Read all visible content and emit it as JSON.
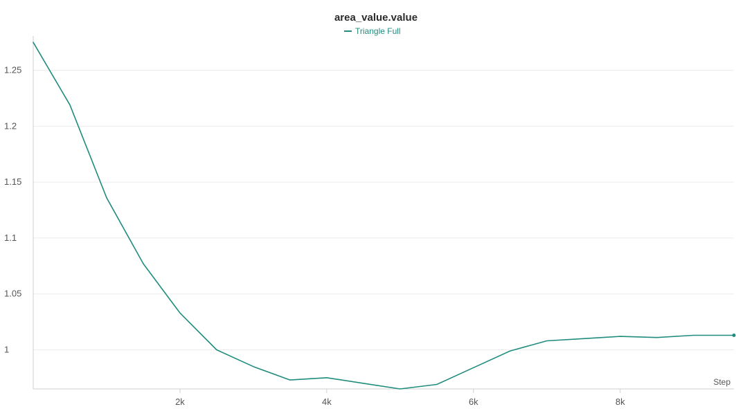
{
  "chart_data": {
    "type": "line",
    "title": "area_value.value",
    "xlabel": "Step",
    "ylabel": "",
    "xlim": [
      0,
      9550
    ],
    "ylim": [
      0.965,
      1.277
    ],
    "x_ticks": [
      2000,
      4000,
      6000,
      8000
    ],
    "x_tick_labels": [
      "2k",
      "4k",
      "6k",
      "8k"
    ],
    "y_ticks": [
      1,
      1.05,
      1.1,
      1.15,
      1.2,
      1.25
    ],
    "y_tick_labels": [
      "1",
      "1.05",
      "1.1",
      "1.15",
      "1.2",
      "1.25"
    ],
    "grid": true,
    "legend": "top-center",
    "series": [
      {
        "name": "Triangle Full",
        "color": "#1f8c7d",
        "x": [
          0,
          500,
          1000,
          1500,
          2000,
          2500,
          3000,
          3500,
          4000,
          4500,
          5000,
          5500,
          6000,
          6500,
          7000,
          7500,
          8000,
          8500,
          9000,
          9550
        ],
        "y": [
          1.275,
          1.219,
          1.136,
          1.077,
          1.033,
          1.0,
          0.985,
          0.973,
          0.975,
          0.97,
          0.965,
          0.969,
          0.984,
          0.999,
          1.008,
          1.01,
          1.012,
          1.011,
          1.013,
          1.013
        ]
      }
    ]
  }
}
